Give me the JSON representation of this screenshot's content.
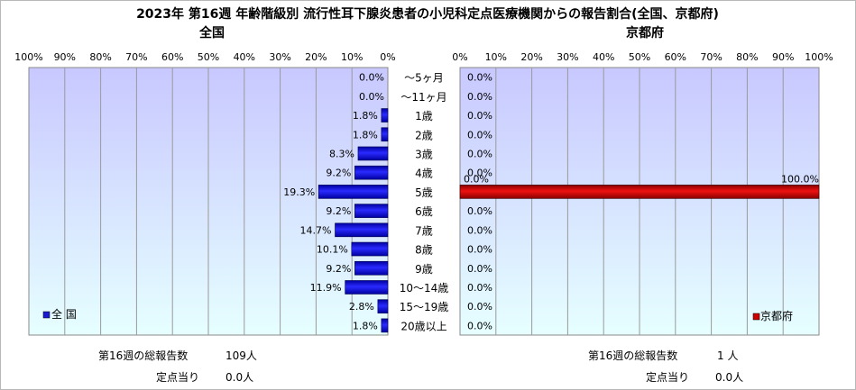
{
  "title": "2023年 第16週 年齢階級別 流行性耳下腺炎患者の小児科定点医療機関からの報告割合(全国、京都府)",
  "categories": [
    "〜5ヶ月",
    "〜11ヶ月",
    "1歳",
    "2歳",
    "3歳",
    "4歳",
    "5歳",
    "6歳",
    "7歳",
    "8歳",
    "9歳",
    "10〜14歳",
    "15〜19歳",
    "20歳以上"
  ],
  "colors": {
    "national_bar": "#1a1ad0",
    "kyoto_bar": "#cc0000",
    "plot_bg_top": "#c8c8ff",
    "plot_bg_bottom": "#e6ffff"
  },
  "chart_data": [
    {
      "type": "bar",
      "title": "全国",
      "orientation": "horizontal-reversed",
      "categories": [
        "〜5ヶ月",
        "〜11ヶ月",
        "1歳",
        "2歳",
        "3歳",
        "4歳",
        "5歳",
        "6歳",
        "7歳",
        "8歳",
        "9歳",
        "10〜14歳",
        "15〜19歳",
        "20歳以上"
      ],
      "series": [
        {
          "name": "全 国",
          "values": [
            0.0,
            0.0,
            1.8,
            1.8,
            8.3,
            9.2,
            19.3,
            9.2,
            14.7,
            10.1,
            9.2,
            11.9,
            2.8,
            1.8
          ]
        }
      ],
      "data_labels": [
        "0.0%",
        "0.0%",
        "1.8%",
        "1.8%",
        "8.3%",
        "9.2%",
        "19.3%",
        "9.2%",
        "14.7%",
        "10.1%",
        "9.2%",
        "11.9%",
        "2.8%",
        "1.8%"
      ],
      "xlim": [
        0,
        100
      ],
      "xticks": [
        "100%",
        "90%",
        "80%",
        "70%",
        "60%",
        "50%",
        "40%",
        "30%",
        "20%",
        "10%",
        "0%"
      ],
      "legend": "bottom-left",
      "grid": true,
      "total_label": "第16週の総報告数",
      "total_value": "109人",
      "per_site_label": "定点当り",
      "per_site_value": "0.0人"
    },
    {
      "type": "bar",
      "title": "京都府",
      "orientation": "horizontal",
      "categories": [
        "〜5ヶ月",
        "〜11ヶ月",
        "1歳",
        "2歳",
        "3歳",
        "4歳",
        "5歳",
        "6歳",
        "7歳",
        "8歳",
        "9歳",
        "10〜14歳",
        "15〜19歳",
        "20歳以上"
      ],
      "series": [
        {
          "name": "京都府",
          "values": [
            0.0,
            0.0,
            0.0,
            0.0,
            0.0,
            0.0,
            100.0,
            0.0,
            0.0,
            0.0,
            0.0,
            0.0,
            0.0,
            0.0
          ]
        }
      ],
      "data_labels": [
        "0.0%",
        "0.0%",
        "0.0%",
        "0.0%",
        "0.0%",
        "0.0%",
        "100.0%",
        "0.0%",
        "0.0%",
        "0.0%",
        "0.0%",
        "0.0%",
        "0.0%",
        "0.0%"
      ],
      "extra_label": "0.0%",
      "xlim": [
        0,
        100
      ],
      "xticks": [
        "0%",
        "10%",
        "20%",
        "30%",
        "40%",
        "50%",
        "60%",
        "70%",
        "80%",
        "90%",
        "100%"
      ],
      "legend": "bottom-right",
      "grid": true,
      "total_label": "第16週の総報告数",
      "total_value": "1 人",
      "per_site_label": "定点当り",
      "per_site_value": "0.0人"
    }
  ]
}
